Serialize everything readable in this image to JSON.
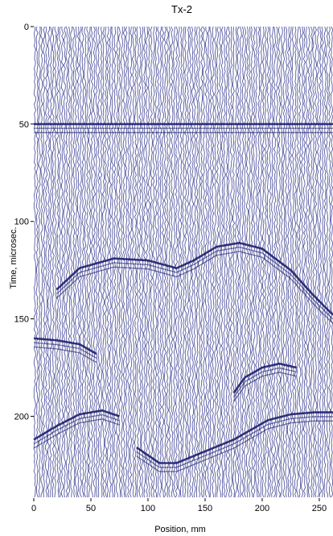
{
  "chart_data": {
    "type": "heatmap",
    "title": "Tx-2",
    "xlabel": "Position, mm",
    "ylabel": "Time, microsec.",
    "xlim": [
      0,
      262
    ],
    "ylim": [
      0,
      242
    ],
    "y_inverted": true,
    "x_ticks": [
      0,
      50,
      100,
      150,
      200,
      250
    ],
    "y_ticks": [
      0,
      50,
      100,
      150,
      200
    ],
    "grid": false,
    "trace_color": "#3a3d8f",
    "background_color": "#ffffff",
    "trace_spacing_mm": 2,
    "reflections": [
      {
        "name": "horizontal-event-50",
        "points": [
          [
            0,
            50
          ],
          [
            262,
            50
          ]
        ]
      },
      {
        "name": "upper-arch",
        "points": [
          [
            20,
            135
          ],
          [
            40,
            124
          ],
          [
            70,
            119
          ],
          [
            100,
            120
          ],
          [
            125,
            124
          ],
          [
            140,
            120
          ],
          [
            160,
            113
          ],
          [
            180,
            111
          ],
          [
            200,
            114
          ],
          [
            225,
            125
          ],
          [
            245,
            138
          ],
          [
            262,
            148
          ]
        ]
      },
      {
        "name": "left-edge-event",
        "points": [
          [
            0,
            160
          ],
          [
            20,
            161
          ],
          [
            40,
            163
          ],
          [
            55,
            168
          ]
        ]
      },
      {
        "name": "right-middle-event",
        "points": [
          [
            175,
            188
          ],
          [
            185,
            180
          ],
          [
            200,
            175
          ],
          [
            215,
            173
          ],
          [
            230,
            175
          ]
        ]
      },
      {
        "name": "left-lower-event",
        "points": [
          [
            0,
            212
          ],
          [
            20,
            205
          ],
          [
            40,
            199
          ],
          [
            60,
            197
          ],
          [
            75,
            200
          ]
        ]
      },
      {
        "name": "center-bottom-event",
        "points": [
          [
            90,
            216
          ],
          [
            110,
            224
          ],
          [
            125,
            224
          ],
          [
            150,
            218
          ],
          [
            175,
            212
          ],
          [
            190,
            207
          ],
          [
            205,
            202
          ],
          [
            225,
            199
          ],
          [
            245,
            198
          ],
          [
            262,
            198
          ]
        ]
      }
    ]
  }
}
